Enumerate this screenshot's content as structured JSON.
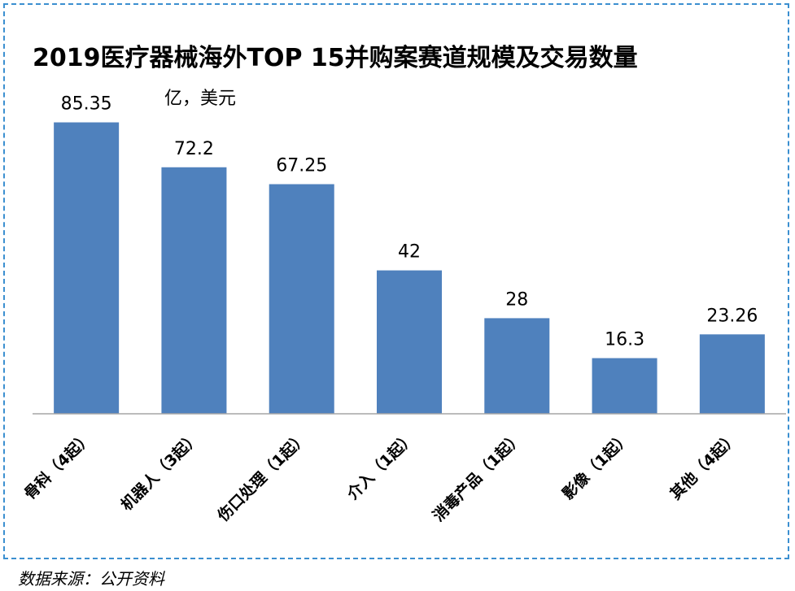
{
  "title": "2019医疗器械海外TOP 15并购案赛道规模及交易数量",
  "unit": "亿，美元",
  "source": "数据来源：公开资料",
  "colors": {
    "bar": "#4f81bd",
    "border": "#3b8fd0"
  },
  "chart_data": {
    "type": "bar",
    "title": "2019医疗器械海外TOP 15并购案赛道规模及交易数量",
    "ylabel": "亿，美元",
    "categories": [
      "骨科（4起）",
      "机器人（3起）",
      "伤口处理（1起）",
      "介入（1起）",
      "消毒产品（1起）",
      "影像（1起）",
      "其他（4起）"
    ],
    "values": [
      85.35,
      72.2,
      67.25,
      42,
      28,
      16.3,
      23.26
    ],
    "value_labels": [
      "85.35",
      "72.2",
      "67.25",
      "42",
      "28",
      "16.3",
      "23.26"
    ],
    "ylim": [
      0,
      90
    ],
    "grid": false,
    "legend": "none"
  }
}
